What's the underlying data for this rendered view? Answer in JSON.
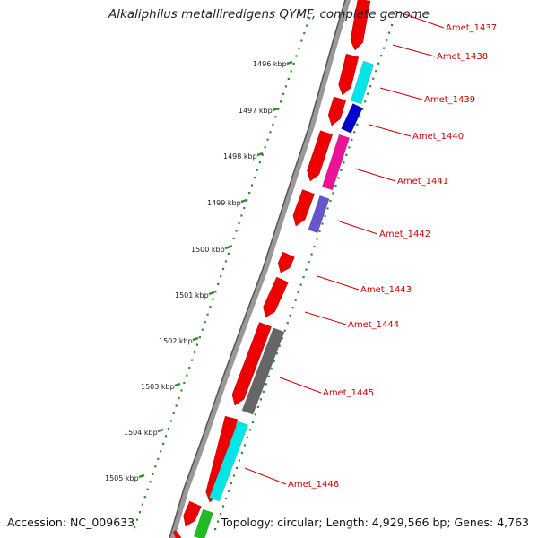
{
  "title": "Alkaliphilus metalliredigens QYMF, complete genome",
  "footer": {
    "accession": "Accession: NC_009633",
    "summary": "Topology: circular; Length: 4,929,566 bp; Genes: 4,763"
  },
  "ruler": [
    "1496 kbp",
    "1497 kbp",
    "1498 kbp",
    "1499 kbp",
    "1500 kbp",
    "1501 kbp",
    "1502 kbp",
    "1503 kbp",
    "1504 kbp",
    "1505 kbp"
  ],
  "colors": {
    "cds": "#ee0000",
    "cyan": "#00e6e6",
    "blue": "#0000cc",
    "magenta": "#ee1199",
    "slate": "#6655cc",
    "gray": "#666666",
    "green": "#22bb22",
    "label": "#cc0000",
    "tick": "#2e8b2e"
  },
  "genes": [
    {
      "label": "Amet_1437"
    },
    {
      "label": "Amet_1438"
    },
    {
      "label": "Amet_1439"
    },
    {
      "label": "Amet_1440"
    },
    {
      "label": "Amet_1441"
    },
    {
      "label": "Amet_1442"
    },
    {
      "label": "Amet_1443"
    },
    {
      "label": "Amet_1444"
    },
    {
      "label": "Amet_1445"
    },
    {
      "label": "Amet_1446"
    }
  ]
}
